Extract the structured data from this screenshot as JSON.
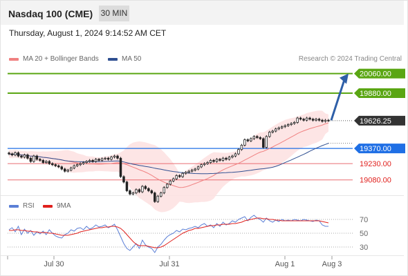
{
  "header": {
    "instrument": "Nasdaq 100 (CME)",
    "interval": "30 MIN",
    "datetime": "Thursday, August 1, 2024 9:14:52 AM CET"
  },
  "legend": {
    "ma20_label": "MA 20 + Bollinger Bands",
    "ma50_label": "MA 50",
    "copyright": "Research © 2024 Trading Central",
    "rsi_label": "RSI",
    "ma9_label": "9MA"
  },
  "colors": {
    "resistance": "#5aa613",
    "pivot": "#1f6fe5",
    "support": "#e96b70",
    "current": "#333333",
    "ma20": "#f08080",
    "ma50": "#2f4f91",
    "bollinger": "#fde0e0",
    "arrow": "#2e5fa8",
    "rsi": "#5b7fd6",
    "rsi_ma": "#e0201d"
  },
  "chart_data": [
    {
      "type": "candlestick",
      "title": "Nasdaq 100 (CME)",
      "ylim": [
        18970,
        20115
      ],
      "x_ticks": [
        "Jul 30",
        "Jul 31",
        "Aug 1",
        "Aug 3"
      ],
      "current_price": "19626.25",
      "levels": [
        {
          "label": "20060.00",
          "value": 20060,
          "kind": "resistance"
        },
        {
          "label": "19880.00",
          "value": 19880,
          "kind": "resistance"
        },
        {
          "label": "19370.00",
          "value": 19370,
          "kind": "pivot"
        },
        {
          "label": "19230.00",
          "value": 19230,
          "kind": "support"
        },
        {
          "label": "19080.00",
          "value": 19080,
          "kind": "support"
        }
      ],
      "arrow": {
        "from": 19630,
        "to": 20060,
        "direction": "up"
      },
      "close": [
        19320,
        19310,
        19330,
        19300,
        19290,
        19310,
        19280,
        19250,
        19300,
        19270,
        19260,
        19240,
        19250,
        19230,
        19220,
        19210,
        19200,
        19180,
        19160,
        19170,
        19190,
        19210,
        19220,
        19230,
        19240,
        19250,
        19260,
        19250,
        19270,
        19260,
        19275,
        19280,
        19270,
        19290,
        19300,
        19280,
        19110,
        19060,
        18980,
        18950,
        18960,
        18990,
        18970,
        19020,
        19000,
        18980,
        18960,
        18880,
        18930,
        18960,
        19010,
        19040,
        19070,
        19090,
        19120,
        19110,
        19140,
        19150,
        19160,
        19170,
        19180,
        19200,
        19220,
        19230,
        19240,
        19260,
        19250,
        19270,
        19260,
        19280,
        19270,
        19290,
        19300,
        19320,
        19360,
        19400,
        19450,
        19440,
        19460,
        19480,
        19470,
        19460,
        19380,
        19480,
        19520,
        19530,
        19550,
        19560,
        19570,
        19580,
        19590,
        19600,
        19610,
        19650,
        19640,
        19630,
        19650,
        19640,
        19630,
        19640,
        19630,
        19620,
        19630,
        19626
      ]
    },
    {
      "type": "line",
      "title": "RSI",
      "ylim": [
        20,
        85
      ],
      "y_ticks": [
        70,
        50,
        30
      ],
      "series": [
        {
          "name": "RSI",
          "values": [
            55,
            58,
            52,
            60,
            48,
            56,
            50,
            54,
            47,
            52,
            49,
            53,
            48,
            55,
            50,
            46,
            44,
            43,
            48,
            50,
            55,
            53,
            57,
            58,
            55,
            60,
            56,
            58,
            62,
            59,
            60,
            62,
            58,
            60,
            63,
            55,
            45,
            35,
            28,
            25,
            30,
            35,
            28,
            40,
            33,
            30,
            28,
            22,
            30,
            34,
            40,
            45,
            48,
            50,
            54,
            52,
            56,
            55,
            57,
            58,
            60,
            58,
            62,
            64,
            60,
            62,
            58,
            64,
            60,
            66,
            62,
            64,
            68,
            66,
            70,
            72,
            74,
            68,
            73,
            76,
            72,
            70,
            66,
            72,
            68,
            66,
            69,
            67,
            70,
            68,
            69,
            68,
            70,
            69,
            68,
            70,
            69,
            68,
            67,
            69,
            68,
            62,
            60,
            60
          ]
        },
        {
          "name": "9MA",
          "values": [
            54,
            54,
            55,
            55,
            54,
            54,
            53,
            53,
            52,
            52,
            51,
            51,
            51,
            50,
            50,
            49,
            48,
            47,
            47,
            47,
            48,
            49,
            50,
            52,
            53,
            54,
            55,
            56,
            57,
            58,
            58,
            59,
            59,
            60,
            60,
            59,
            57,
            53,
            48,
            43,
            38,
            34,
            32,
            32,
            32,
            31,
            30,
            29,
            29,
            30,
            32,
            35,
            38,
            41,
            44,
            47,
            50,
            52,
            54,
            55,
            57,
            57,
            58,
            59,
            60,
            61,
            61,
            62,
            62,
            63,
            63,
            63,
            64,
            64,
            65,
            66,
            68,
            69,
            70,
            71,
            72,
            72,
            71,
            71,
            70,
            70,
            69,
            69,
            68,
            68,
            68,
            68,
            68,
            68,
            68,
            68,
            68,
            68,
            68,
            68,
            68,
            67,
            66,
            65
          ]
        }
      ]
    }
  ]
}
